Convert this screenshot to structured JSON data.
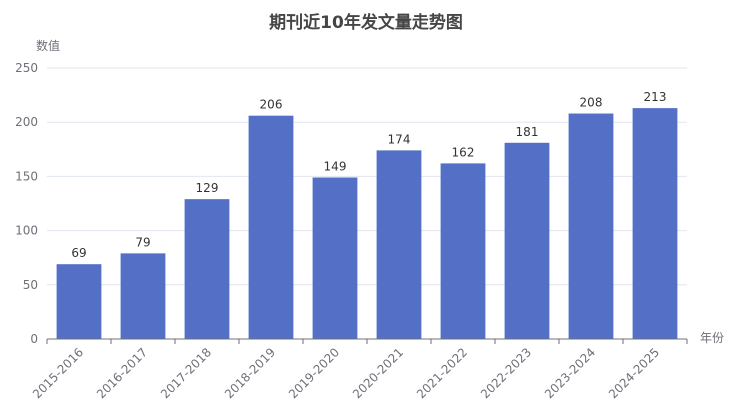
{
  "chart_data": {
    "type": "bar",
    "title": "期刊近10年发文量走势图",
    "xlabel": "年份",
    "ylabel": "数值",
    "categories": [
      "2015-2016",
      "2016-2017",
      "2017-2018",
      "2018-2019",
      "2019-2020",
      "2020-2021",
      "2021-2022",
      "2022-2023",
      "2023-2024",
      "2024-2025"
    ],
    "values": [
      69,
      79,
      129,
      206,
      149,
      174,
      162,
      181,
      208,
      213
    ],
    "ylim": [
      0,
      250
    ],
    "yticks": [
      0,
      50,
      100,
      150,
      200,
      250
    ],
    "grid": true,
    "bar_color": "#5470c6"
  }
}
